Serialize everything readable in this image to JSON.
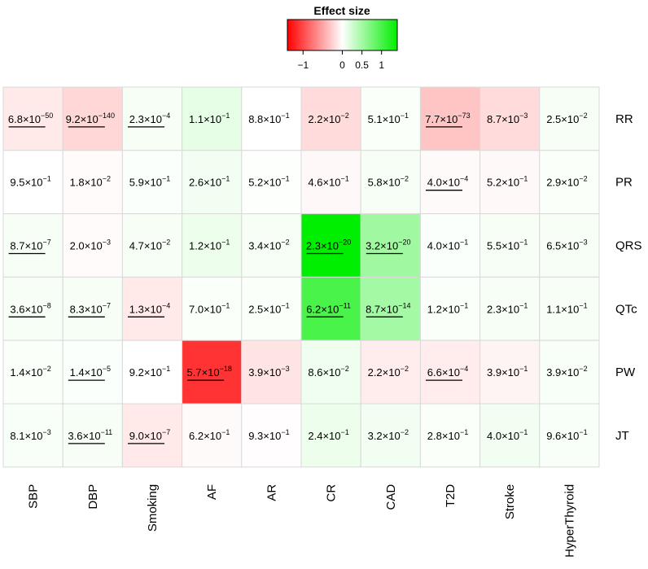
{
  "chart_data": {
    "type": "heatmap",
    "legend": {
      "title": "Effect size",
      "ticks": [
        {
          "value": -1,
          "label": "−1"
        },
        {
          "value": 0,
          "label": "0"
        },
        {
          "value": 0.5,
          "label": "0.5"
        },
        {
          "value": 1,
          "label": "1"
        }
      ],
      "range": [
        -1.4,
        1.4
      ],
      "low_color": "#ff0000",
      "mid_color": "#ffffff",
      "high_color": "#00ee00"
    },
    "rows": [
      "RR",
      "PR",
      "QRS",
      "QTc",
      "PW",
      "JT"
    ],
    "columns": [
      "SBP",
      "DBP",
      "Smoking",
      "AF",
      "AR",
      "CR",
      "CAD",
      "T2D",
      "Stroke",
      "HyperThyroid"
    ],
    "cells": [
      [
        {
          "m": "6.8",
          "e": "−50",
          "u": true,
          "effect": -0.12
        },
        {
          "m": "9.2",
          "e": "−140",
          "u": true,
          "effect": -0.22
        },
        {
          "m": "2.3",
          "e": "−4",
          "u": true,
          "effect": 0.05
        },
        {
          "m": "1.1",
          "e": "−1",
          "u": false,
          "effect": 0.14
        },
        {
          "m": "8.8",
          "e": "−1",
          "u": false,
          "effect": 0.0
        },
        {
          "m": "2.2",
          "e": "−2",
          "u": false,
          "effect": -0.2
        },
        {
          "m": "5.1",
          "e": "−1",
          "u": false,
          "effect": 0.03
        },
        {
          "m": "7.7",
          "e": "−73",
          "u": true,
          "effect": -0.32
        },
        {
          "m": "8.7",
          "e": "−3",
          "u": false,
          "effect": -0.2
        },
        {
          "m": "2.5",
          "e": "−2",
          "u": false,
          "effect": 0.05
        }
      ],
      [
        {
          "m": "9.5",
          "e": "−1",
          "u": false,
          "effect": 0.0
        },
        {
          "m": "1.8",
          "e": "−2",
          "u": false,
          "effect": -0.02
        },
        {
          "m": "5.9",
          "e": "−1",
          "u": false,
          "effect": 0.02
        },
        {
          "m": "2.6",
          "e": "−1",
          "u": false,
          "effect": 0.07
        },
        {
          "m": "5.2",
          "e": "−1",
          "u": false,
          "effect": 0.01
        },
        {
          "m": "4.6",
          "e": "−1",
          "u": false,
          "effect": -0.04
        },
        {
          "m": "5.8",
          "e": "−2",
          "u": false,
          "effect": 0.05
        },
        {
          "m": "4.0",
          "e": "−4",
          "u": true,
          "effect": -0.03
        },
        {
          "m": "5.2",
          "e": "−1",
          "u": false,
          "effect": -0.04
        },
        {
          "m": "2.9",
          "e": "−2",
          "u": false,
          "effect": 0.03
        }
      ],
      [
        {
          "m": "8.7",
          "e": "−7",
          "u": true,
          "effect": 0.05
        },
        {
          "m": "2.0",
          "e": "−3",
          "u": false,
          "effect": -0.02
        },
        {
          "m": "4.7",
          "e": "−2",
          "u": false,
          "effect": 0.05
        },
        {
          "m": "1.2",
          "e": "−1",
          "u": false,
          "effect": 0.1
        },
        {
          "m": "3.4",
          "e": "−2",
          "u": false,
          "effect": 0.05
        },
        {
          "m": "2.3",
          "e": "−20",
          "u": true,
          "effect": 1.4
        },
        {
          "m": "3.2",
          "e": "−20",
          "u": true,
          "effect": 0.52
        },
        {
          "m": "4.0",
          "e": "−1",
          "u": false,
          "effect": 0.02
        },
        {
          "m": "5.5",
          "e": "−1",
          "u": false,
          "effect": 0.05
        },
        {
          "m": "6.5",
          "e": "−3",
          "u": false,
          "effect": 0.05
        }
      ],
      [
        {
          "m": "3.6",
          "e": "−8",
          "u": true,
          "effect": 0.05
        },
        {
          "m": "8.3",
          "e": "−7",
          "u": true,
          "effect": 0.05
        },
        {
          "m": "1.3",
          "e": "−4",
          "u": true,
          "effect": -0.12
        },
        {
          "m": "7.0",
          "e": "−1",
          "u": false,
          "effect": 0.03
        },
        {
          "m": "2.5",
          "e": "−1",
          "u": false,
          "effect": 0.03
        },
        {
          "m": "6.2",
          "e": "−11",
          "u": true,
          "effect": 1.0
        },
        {
          "m": "8.7",
          "e": "−14",
          "u": true,
          "effect": 0.5
        },
        {
          "m": "1.2",
          "e": "−1",
          "u": false,
          "effect": 0.03
        },
        {
          "m": "2.3",
          "e": "−1",
          "u": false,
          "effect": 0.05
        },
        {
          "m": "1.1",
          "e": "−1",
          "u": false,
          "effect": 0.05
        }
      ],
      [
        {
          "m": "1.4",
          "e": "−2",
          "u": false,
          "effect": 0.03
        },
        {
          "m": "1.4",
          "e": "−5",
          "u": true,
          "effect": 0.02
        },
        {
          "m": "9.2",
          "e": "−1",
          "u": false,
          "effect": 0.0
        },
        {
          "m": "5.7",
          "e": "−18",
          "u": true,
          "effect": -1.12
        },
        {
          "m": "3.9",
          "e": "−3",
          "u": false,
          "effect": -0.15
        },
        {
          "m": "8.6",
          "e": "−2",
          "u": false,
          "effect": 0.08
        },
        {
          "m": "2.2",
          "e": "−2",
          "u": false,
          "effect": -0.1
        },
        {
          "m": "6.6",
          "e": "−4",
          "u": true,
          "effect": -0.1
        },
        {
          "m": "3.9",
          "e": "−1",
          "u": false,
          "effect": -0.06
        },
        {
          "m": "3.9",
          "e": "−2",
          "u": false,
          "effect": 0.04
        }
      ],
      [
        {
          "m": "8.1",
          "e": "−3",
          "u": false,
          "effect": 0.04
        },
        {
          "m": "3.6",
          "e": "−11",
          "u": true,
          "effect": 0.05
        },
        {
          "m": "9.0",
          "e": "−7",
          "u": true,
          "effect": -0.12
        },
        {
          "m": "6.2",
          "e": "−1",
          "u": false,
          "effect": -0.03
        },
        {
          "m": "9.3",
          "e": "−1",
          "u": false,
          "effect": -0.01
        },
        {
          "m": "2.4",
          "e": "−1",
          "u": false,
          "effect": 0.1
        },
        {
          "m": "3.2",
          "e": "−2",
          "u": false,
          "effect": 0.07
        },
        {
          "m": "2.8",
          "e": "−1",
          "u": false,
          "effect": 0.03
        },
        {
          "m": "4.0",
          "e": "−1",
          "u": false,
          "effect": 0.07
        },
        {
          "m": "9.6",
          "e": "−1",
          "u": false,
          "effect": 0.04
        }
      ]
    ]
  }
}
